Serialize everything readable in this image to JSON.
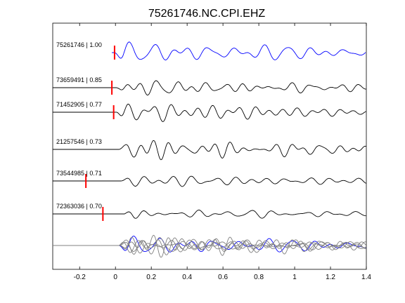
{
  "chart_data": {
    "type": "line",
    "title": "75261746.NC.CPI.EHZ",
    "xlabel": "",
    "ylabel": "",
    "xlim": [
      -0.35,
      1.4
    ],
    "xticks": [
      -0.2,
      0,
      0.2,
      0.4,
      0.6,
      0.8,
      1,
      1.2,
      1.4
    ],
    "xtick_labels": [
      "-0.2",
      "0",
      "0.2",
      "0.4",
      "0.6",
      "0.8",
      "1",
      "1.2",
      "1.4"
    ],
    "grid": false,
    "legend": "none",
    "colors": {
      "reference_trace": "#0000ff",
      "trace": "#000000",
      "overlay_trace": "#808080",
      "pick_marker": "#ff0000"
    },
    "traces": [
      {
        "label": "75261746 | 1.00",
        "event_id": "75261746",
        "correlation": 1.0,
        "pick_time": -0.005,
        "reference": true
      },
      {
        "label": "73659491 | 0.85",
        "event_id": "73659491",
        "correlation": 0.85,
        "pick_time": -0.02,
        "reference": false
      },
      {
        "label": "71452905 | 0.77",
        "event_id": "71452905",
        "correlation": 0.77,
        "pick_time": -0.01,
        "reference": false
      },
      {
        "label": "21257546 | 0.73",
        "event_id": "21257546",
        "correlation": 0.73,
        "pick_time": null,
        "reference": false
      },
      {
        "label": "73544985 | 0.71",
        "event_id": "73544985",
        "correlation": 0.71,
        "pick_time": -0.165,
        "reference": false
      },
      {
        "label": "72363036 | 0.70",
        "event_id": "72363036",
        "correlation": 0.7,
        "pick_time": -0.07,
        "reference": false
      }
    ],
    "stack": {
      "description": "overlay of all traces aligned",
      "reference_color": "#0000ff",
      "other_color": "#808080"
    }
  }
}
